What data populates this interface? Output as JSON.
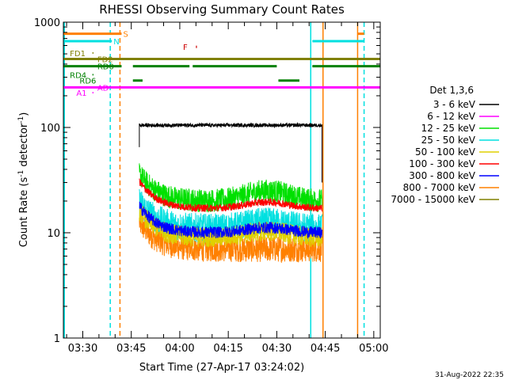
{
  "chart_data": {
    "type": "line",
    "title": "RHESSI Observing Summary Count Rates",
    "xlabel": "Start Time (27-Apr-17 03:24:02)",
    "ylabel_main": "Count Rate (s",
    "ylabel_sup1": "-1",
    "ylabel_mid": " detector",
    "ylabel_sup2": "-1",
    "ylabel_end": ")",
    "x_unit": "minutes since 03:24:02",
    "xlim": [
      0,
      98
    ],
    "ylim": [
      1,
      1000
    ],
    "yscale": "log",
    "xticks": [
      {
        "v": 6,
        "label": "03:30"
      },
      {
        "v": 21,
        "label": "03:45"
      },
      {
        "v": 36,
        "label": "04:00"
      },
      {
        "v": 51,
        "label": "04:15"
      },
      {
        "v": 66,
        "label": "04:30"
      },
      {
        "v": 81,
        "label": "04:45"
      },
      {
        "v": 96,
        "label": "05:00"
      }
    ],
    "yticks": [
      {
        "v": 1,
        "label": "1"
      },
      {
        "v": 10,
        "label": "10"
      },
      {
        "v": 100,
        "label": "100"
      },
      {
        "v": 1000,
        "label": "1000"
      }
    ],
    "legend_title": "Det 1,3,6",
    "legend_position": "right",
    "series": [
      {
        "name": "3 - 6 keV",
        "color": "#000000",
        "level": 105,
        "noise": 0.04,
        "start": 23.5,
        "end": 80,
        "kind": "flat"
      },
      {
        "name": "6 - 12 keV",
        "color": "#ff00ff",
        "level": 0,
        "noise": 0,
        "start": 0,
        "end": 0,
        "kind": "none"
      },
      {
        "name": "12 - 25 keV",
        "color": "#00e000",
        "level": 20,
        "noise": 0.16,
        "start": 23.5,
        "end": 80,
        "kind": "decay",
        "bump": 1.25
      },
      {
        "name": "25 - 50 keV",
        "color": "#00e0e0",
        "level": 11,
        "noise": 0.2,
        "start": 23.5,
        "end": 80,
        "kind": "decay",
        "bump": 1.15
      },
      {
        "name": "50 - 100 keV",
        "color": "#e0d000",
        "level": 9,
        "noise": 0.14,
        "start": 23.5,
        "end": 80,
        "kind": "decay",
        "bump": 1.15
      },
      {
        "name": "100 - 300 keV",
        "color": "#ff0000",
        "level": 17,
        "noise": 0.05,
        "start": 23.5,
        "end": 80,
        "kind": "decay",
        "bump": 1.15
      },
      {
        "name": "300 - 800 keV",
        "color": "#0000ff",
        "level": 10,
        "noise": 0.08,
        "start": 23.5,
        "end": 80,
        "kind": "decay",
        "bump": 1.12
      },
      {
        "name": "800 - 7000 keV",
        "color": "#ff8000",
        "level": 7,
        "noise": 0.18,
        "start": 23.5,
        "end": 80,
        "kind": "decay",
        "bump": 1.0
      },
      {
        "name": "7000 - 15000 keV",
        "color": "#808000",
        "level": 0,
        "noise": 0,
        "start": 0,
        "end": 0,
        "kind": "none"
      }
    ],
    "vlines": [
      {
        "x": 0.3,
        "color": "#00e0e0",
        "dash": false
      },
      {
        "x": 14.5,
        "color": "#00e0e0",
        "dash": true
      },
      {
        "x": 17.5,
        "color": "#ff8000",
        "dash": true
      },
      {
        "x": 76.5,
        "color": "#00e0e0",
        "dash": false
      },
      {
        "x": 80.3,
        "color": "#ff8000",
        "dash": false
      },
      {
        "x": 91,
        "color": "#ff8000",
        "dash": false
      },
      {
        "x": 93,
        "color": "#00e0e0",
        "dash": true
      }
    ],
    "flag_lines": [
      {
        "name": "S",
        "color": "#ff8000",
        "y": 776,
        "x_start": 0,
        "x_end": 18,
        "x2_start": 91,
        "x2_end": 93,
        "label_x": 18.5,
        "width": 3
      },
      {
        "name": "N",
        "color": "#00e0e0",
        "y": 660,
        "x_start": 0,
        "x_end": 15,
        "x2_start": 77,
        "x2_end": 93,
        "label_x": 15.5,
        "width": 3
      },
      {
        "name": "F",
        "color": "#cc0000",
        "y": 583,
        "x_start": 41,
        "x_end": 41.3,
        "label_x": 37,
        "width": 3
      },
      {
        "name": "FD1",
        "color": "#808000",
        "y": 510,
        "x_start": 9,
        "x_end": 9.3,
        "label_x": 2,
        "width": 2
      },
      {
        "name": "FD2",
        "color": "#808000",
        "y": 447,
        "x_start": 0,
        "x_end": 98,
        "label_x": 10.5,
        "width": 3
      },
      {
        "name": "RD0",
        "color": "#008000",
        "y": 382,
        "x_start": 0,
        "x_end": 98,
        "label_x": 10.5,
        "width": 3
      },
      {
        "name": "RD4",
        "color": "#008000",
        "y": 317,
        "x_start": 9,
        "x_end": 9.3,
        "label_x": 2,
        "width": 2
      },
      {
        "name": "RD6",
        "color": "#008000",
        "y": 279,
        "x_start": 21.5,
        "x_end": 24.5,
        "x2_start": 66.5,
        "x2_end": 73,
        "label_x": 5,
        "width": 3
      },
      {
        "name": "AD",
        "color": "#ff00ff",
        "y": 240,
        "x_start": 0,
        "x_end": 98,
        "label_x": 10.5,
        "width": 3
      },
      {
        "name": "A1",
        "color": "#ff00ff",
        "y": 214,
        "x_start": 9,
        "x_end": 9.3,
        "label_x": 4,
        "width": 2
      }
    ],
    "rd0_gaps": [
      [
        18,
        21.5
      ],
      [
        39,
        40
      ],
      [
        66,
        77
      ]
    ],
    "footer_date": "31-Aug-2022 22:35"
  }
}
